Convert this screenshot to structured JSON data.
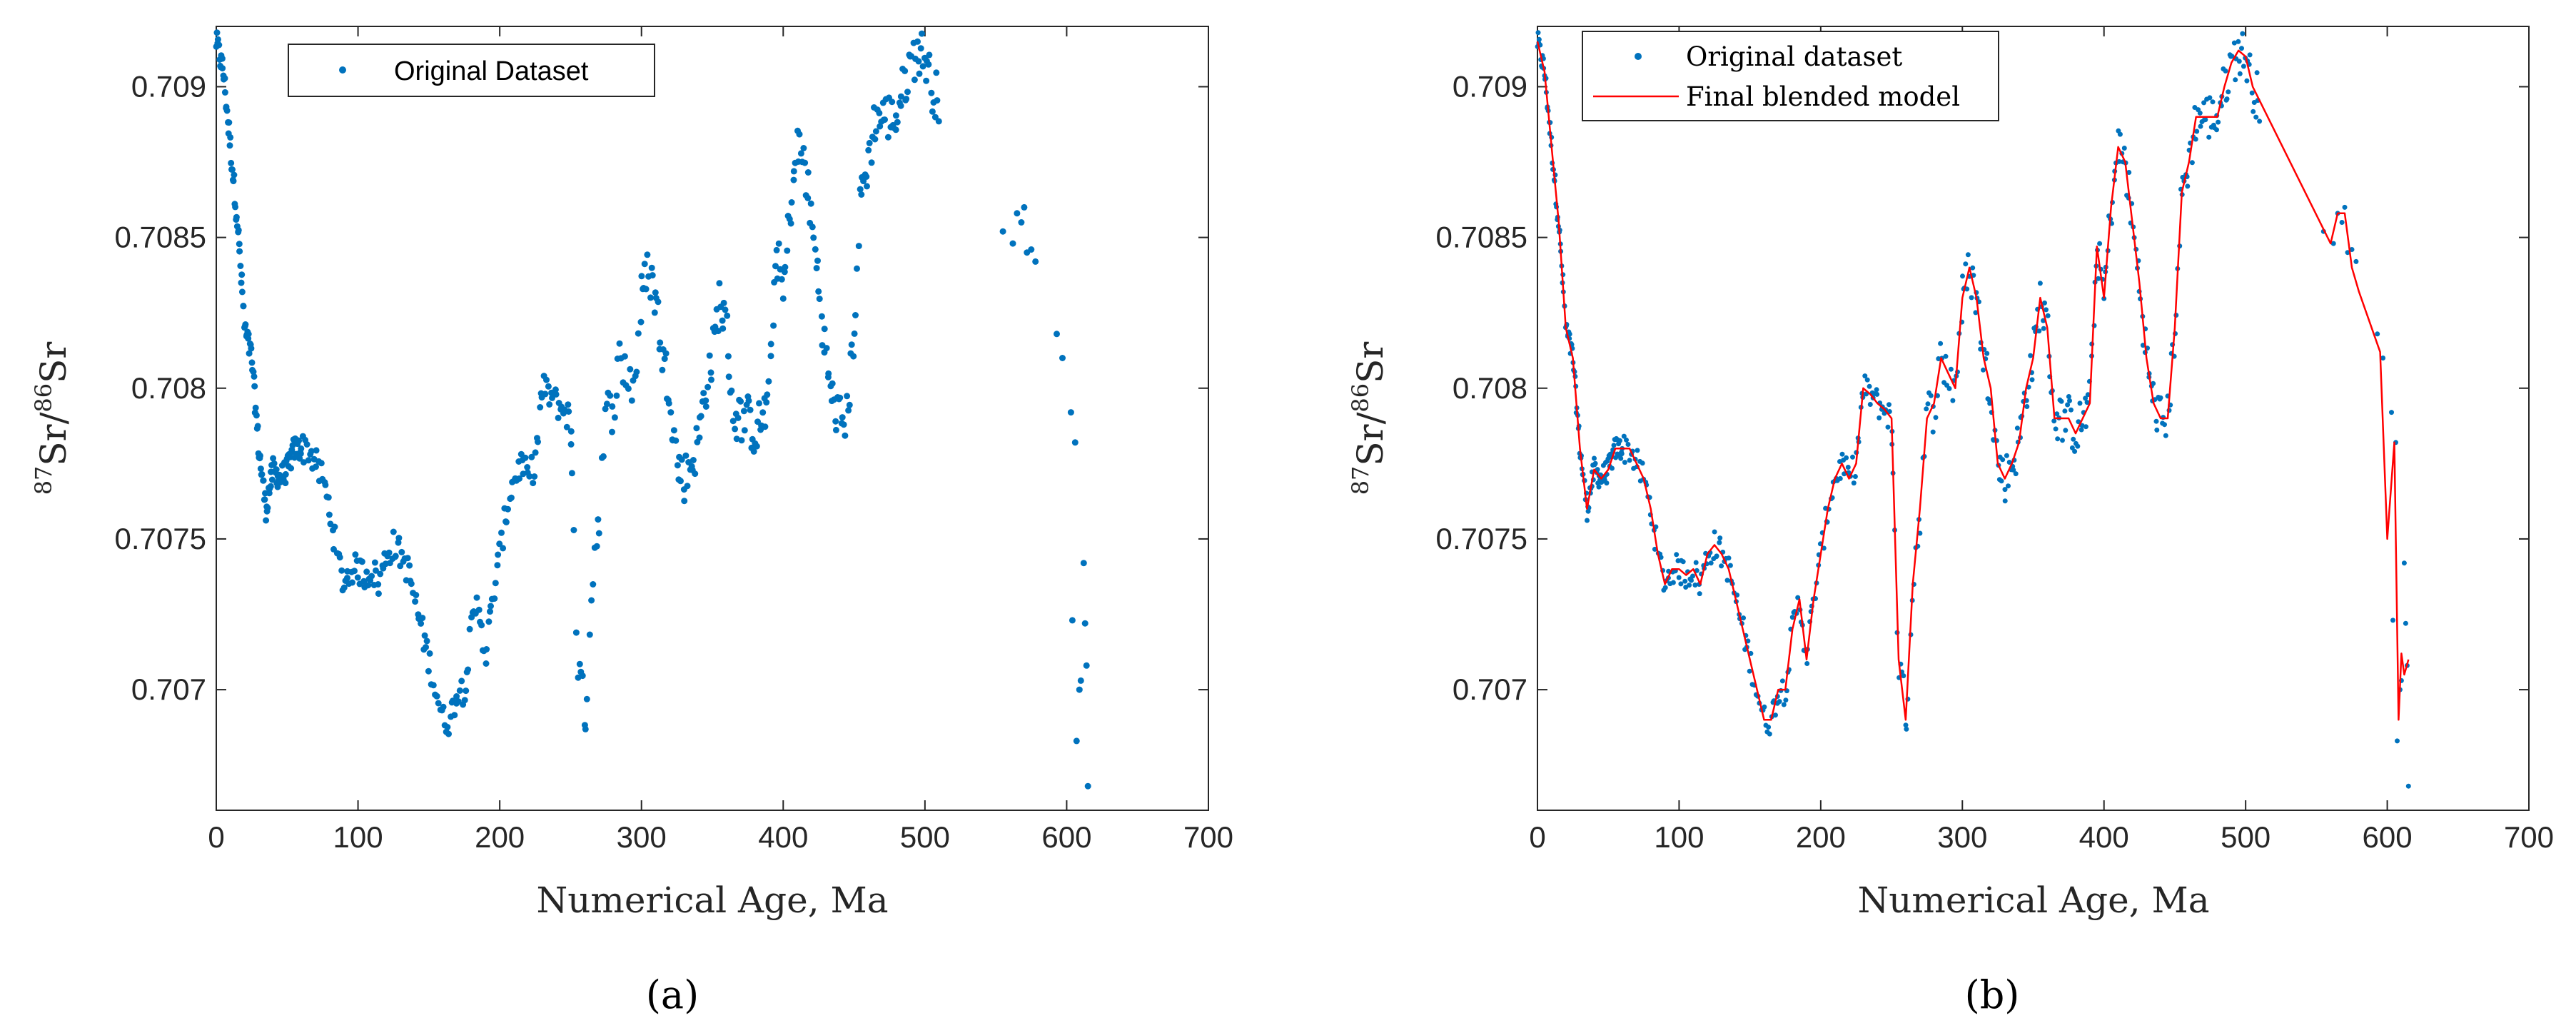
{
  "chart_data": [
    {
      "panel": "a",
      "type": "scatter",
      "caption": "(a)",
      "xlabel": "Numerical Age, Ma",
      "ylabel": "87Sr/86Sr",
      "xlim": [
        0,
        700
      ],
      "ylim": [
        0.7066,
        0.7092
      ],
      "xticks": [
        0,
        100,
        200,
        300,
        400,
        500,
        600,
        700
      ],
      "yticks": [
        0.707,
        0.7075,
        0.708,
        0.7085,
        0.709
      ],
      "grid": false,
      "legend": {
        "placement": "top-left",
        "entries": [
          "Original Dataset"
        ]
      },
      "colors": {
        "points": "#0072BD"
      },
      "series": [
        {
          "name": "Original Dataset",
          "style": "points"
        }
      ]
    },
    {
      "panel": "b",
      "type": "line",
      "caption": "(b)",
      "xlabel": "Numerical Age, Ma",
      "ylabel": "87Sr/86Sr",
      "xlim": [
        0,
        700
      ],
      "ylim": [
        0.7066,
        0.7092
      ],
      "xticks": [
        0,
        100,
        200,
        300,
        400,
        500,
        600,
        700
      ],
      "yticks": [
        0.707,
        0.7075,
        0.708,
        0.7085,
        0.709
      ],
      "grid": false,
      "legend": {
        "placement": "top-left",
        "entries": [
          "Original dataset",
          "Final blended model"
        ]
      },
      "colors": {
        "points": "#0072BD",
        "model": "#FF0000"
      },
      "series": [
        {
          "name": "Original dataset",
          "style": "points"
        },
        {
          "name": "Final blended model",
          "style": "line",
          "x": [
            0,
            5,
            10,
            15,
            20,
            25,
            30,
            35,
            40,
            45,
            50,
            55,
            60,
            65,
            70,
            75,
            80,
            85,
            90,
            95,
            100,
            105,
            110,
            115,
            120,
            125,
            130,
            135,
            140,
            145,
            150,
            155,
            160,
            165,
            170,
            175,
            180,
            185,
            190,
            195,
            200,
            205,
            210,
            215,
            220,
            225,
            230,
            235,
            240,
            245,
            250,
            255,
            260,
            265,
            270,
            275,
            280,
            285,
            290,
            295,
            300,
            305,
            310,
            315,
            320,
            325,
            330,
            335,
            340,
            345,
            350,
            355,
            360,
            365,
            370,
            375,
            380,
            385,
            390,
            395,
            400,
            405,
            410,
            415,
            420,
            425,
            430,
            435,
            440,
            445,
            450,
            455,
            460,
            465,
            470,
            475,
            480,
            485,
            490,
            495,
            500,
            505,
            560,
            565,
            570,
            575,
            580,
            595,
            600,
            605,
            608,
            610,
            612,
            615
          ],
          "y": [
            0.70915,
            0.70905,
            0.7088,
            0.70855,
            0.7082,
            0.7081,
            0.7078,
            0.7076,
            0.70773,
            0.7077,
            0.70773,
            0.7078,
            0.7078,
            0.7078,
            0.70775,
            0.7077,
            0.7076,
            0.70745,
            0.70735,
            0.7074,
            0.7074,
            0.70738,
            0.7074,
            0.70735,
            0.70745,
            0.70748,
            0.70745,
            0.7074,
            0.7073,
            0.7072,
            0.7071,
            0.707,
            0.7069,
            0.7069,
            0.707,
            0.707,
            0.7072,
            0.7073,
            0.7071,
            0.7073,
            0.70745,
            0.7076,
            0.7077,
            0.70775,
            0.7077,
            0.70775,
            0.708,
            0.70798,
            0.70795,
            0.70793,
            0.7079,
            0.7071,
            0.7069,
            0.70735,
            0.7076,
            0.7079,
            0.70795,
            0.7081,
            0.70805,
            0.708,
            0.7083,
            0.7084,
            0.7083,
            0.7081,
            0.708,
            0.70775,
            0.7077,
            0.70775,
            0.70782,
            0.708,
            0.7081,
            0.7083,
            0.7082,
            0.7079,
            0.7079,
            0.7079,
            0.70785,
            0.7079,
            0.70795,
            0.70847,
            0.7083,
            0.7086,
            0.7088,
            0.70875,
            0.70855,
            0.70835,
            0.7081,
            0.70795,
            0.7079,
            0.7079,
            0.7082,
            0.70865,
            0.70875,
            0.7089,
            0.7089,
            0.7089,
            0.7089,
            0.709,
            0.70908,
            0.70912,
            0.7091,
            0.709,
            0.70848,
            0.70858,
            0.70858,
            0.7084,
            0.70832,
            0.70812,
            0.7075,
            0.70782,
            0.7069,
            0.70712,
            0.70705,
            0.7071
          ]
        }
      ]
    }
  ]
}
